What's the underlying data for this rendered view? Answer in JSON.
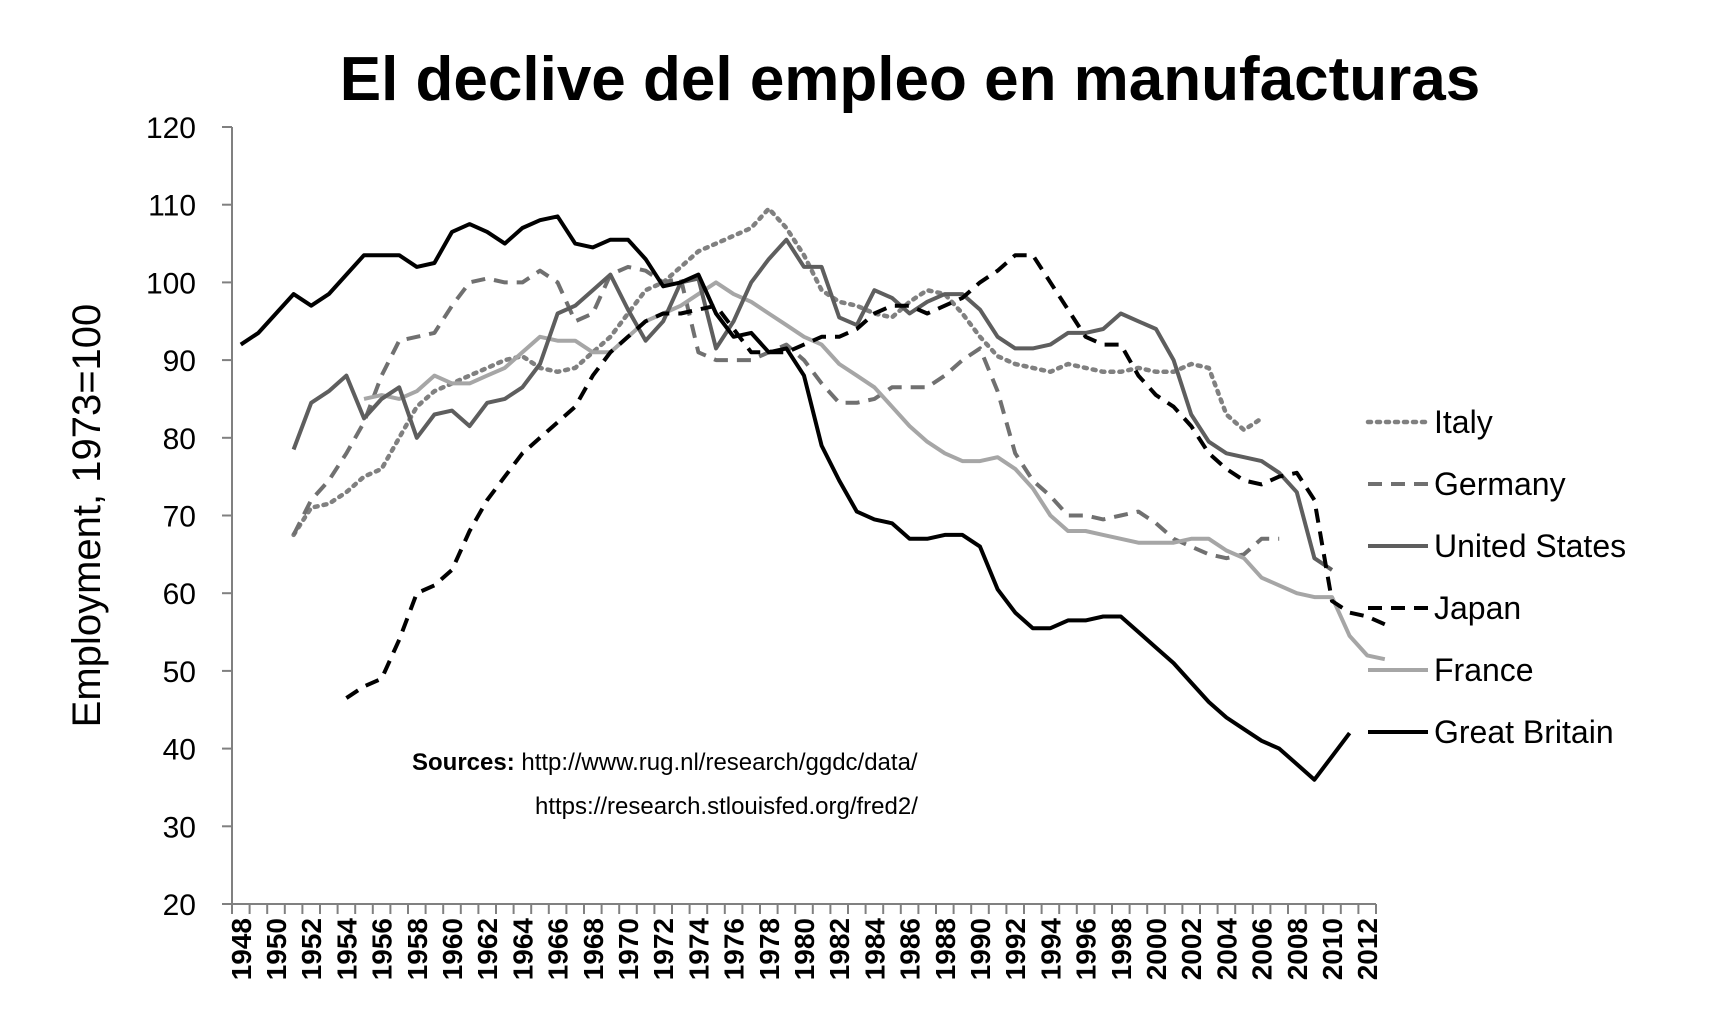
{
  "chart_data": {
    "type": "line",
    "title": "El declive del empleo en manufacturas",
    "ylabel": "Employment, 1973=100",
    "xlabel": "",
    "ylim": [
      20,
      120
    ],
    "yticks": [
      "20",
      "30",
      "40",
      "50",
      "60",
      "70",
      "80",
      "90",
      "100",
      "110",
      "120"
    ],
    "xlim": [
      1948,
      2012
    ],
    "xticks": [
      "1948",
      "1950",
      "1952",
      "1954",
      "1956",
      "1958",
      "1960",
      "1962",
      "1964",
      "1966",
      "1968",
      "1970",
      "1972",
      "1974",
      "1976",
      "1978",
      "1980",
      "1982",
      "1984",
      "1986",
      "1988",
      "1990",
      "1992",
      "1994",
      "1996",
      "1998",
      "2000",
      "2002",
      "2004",
      "2006",
      "2008",
      "2010",
      "2012"
    ],
    "grid": false,
    "legend_position": "right",
    "sources": {
      "heading": "Sources:",
      "line1": "http://www.rug.nl/research/ggdc/data/",
      "line2": "https://research.stlouisfed.org/fred2/"
    },
    "series": [
      {
        "name": "Italy",
        "color": "#808080",
        "dash": "dotted",
        "start": 1951,
        "values": [
          67.5,
          71,
          71.5,
          73,
          75,
          76,
          80,
          84,
          86,
          87,
          88,
          89,
          90,
          90.5,
          89,
          88.5,
          89,
          91,
          93,
          96,
          99,
          100,
          102,
          104,
          105,
          106,
          107,
          109.5,
          107,
          103.5,
          99,
          97.5,
          97,
          96,
          95.5,
          97.5,
          99,
          98.5,
          96,
          93,
          90.5,
          89.5,
          89,
          88.5,
          89.5,
          89,
          88.5,
          88.5,
          89,
          88.5,
          88.5,
          89.5,
          89,
          83,
          81,
          82.5
        ]
      },
      {
        "name": "Germany",
        "color": "#707070",
        "dash": "dashed",
        "start": 1951,
        "values": [
          67.5,
          72,
          74.5,
          78,
          82,
          88,
          92.5,
          93,
          93.5,
          97,
          100,
          100.5,
          100,
          100,
          101.5,
          100,
          95,
          96,
          101,
          102,
          101.5,
          100,
          100.5,
          91,
          90,
          90,
          90,
          91,
          92,
          90,
          87,
          84.5,
          84.5,
          85,
          86.5,
          86.5,
          86.5,
          88,
          90,
          91.5,
          86,
          78,
          74.5,
          72.5,
          70,
          70,
          69.5,
          70,
          70.5,
          69,
          67,
          66,
          65,
          64.5,
          65,
          67,
          67
        ]
      },
      {
        "name": "United States",
        "color": "#5e5e5e",
        "dash": "solid",
        "start": 1951,
        "values": [
          78.5,
          84.5,
          86,
          88,
          82.5,
          85,
          86.5,
          80,
          83,
          83.5,
          81.5,
          84.5,
          85,
          86.5,
          89.5,
          96,
          97,
          99,
          101,
          96.5,
          92.5,
          95,
          100,
          100.5,
          91.5,
          95,
          100,
          103,
          105.5,
          102,
          102,
          95.5,
          94.5,
          99,
          98,
          96,
          97.5,
          98.5,
          98.5,
          96.5,
          93,
          91.5,
          91.5,
          92,
          93.5,
          93.5,
          94,
          96,
          95,
          94,
          90,
          83,
          79.5,
          78,
          77.5,
          77,
          75.5,
          73,
          64.5,
          63
        ]
      },
      {
        "name": "Japan",
        "color": "#000000",
        "dash": "dashed",
        "start": 1954,
        "values": [
          46.5,
          48,
          49,
          54,
          60,
          61,
          63,
          68,
          72,
          75,
          78,
          80,
          82,
          84,
          88,
          91,
          93,
          95,
          96,
          96,
          96.5,
          97,
          94,
          91,
          91,
          91,
          92,
          93,
          93,
          94,
          96,
          97,
          97,
          96,
          97,
          98,
          100,
          101.5,
          103.5,
          103.5,
          100,
          96.5,
          93,
          92,
          92,
          88,
          85.5,
          84,
          81.5,
          78,
          76,
          74.5,
          74,
          75,
          75.5,
          72,
          59,
          57.5,
          57,
          56
        ]
      },
      {
        "name": "France",
        "color": "#a6a6a6",
        "dash": "solid",
        "start": 1955,
        "values": [
          85,
          85.5,
          85,
          86,
          88,
          87,
          87,
          88,
          89,
          91,
          93,
          92.5,
          92.5,
          91,
          91,
          93,
          95,
          96,
          97,
          98.5,
          100,
          98.5,
          97.5,
          96,
          94.5,
          93,
          92,
          89.5,
          88,
          86.5,
          84,
          81.5,
          79.5,
          78,
          77,
          77,
          77.5,
          76,
          73.5,
          70,
          68,
          68,
          67.5,
          67,
          66.5,
          66.5,
          66.5,
          67,
          67,
          65.5,
          64.5,
          62,
          61,
          60,
          59.5,
          59.5,
          54.5,
          52,
          51.5
        ]
      },
      {
        "name": "Great Britain",
        "color": "#000000",
        "dash": "solid",
        "start": 1948,
        "values": [
          92,
          93.5,
          96,
          98.5,
          97,
          98.5,
          101,
          103.5,
          103.5,
          103.5,
          102,
          102.5,
          106.5,
          107.5,
          106.5,
          105,
          107,
          108,
          108.5,
          105,
          104.5,
          105.5,
          105.5,
          103,
          99.5,
          100,
          101,
          96,
          93,
          93.5,
          91,
          91.5,
          88,
          79,
          74.5,
          70.5,
          69.5,
          69,
          67,
          67,
          67.5,
          67.5,
          66,
          60.5,
          57.5,
          55.5,
          55.5,
          56.5,
          56.5,
          57,
          57,
          55,
          53,
          51,
          48.5,
          46,
          44,
          42.5,
          41,
          40,
          38,
          36,
          39,
          42
        ]
      }
    ]
  }
}
